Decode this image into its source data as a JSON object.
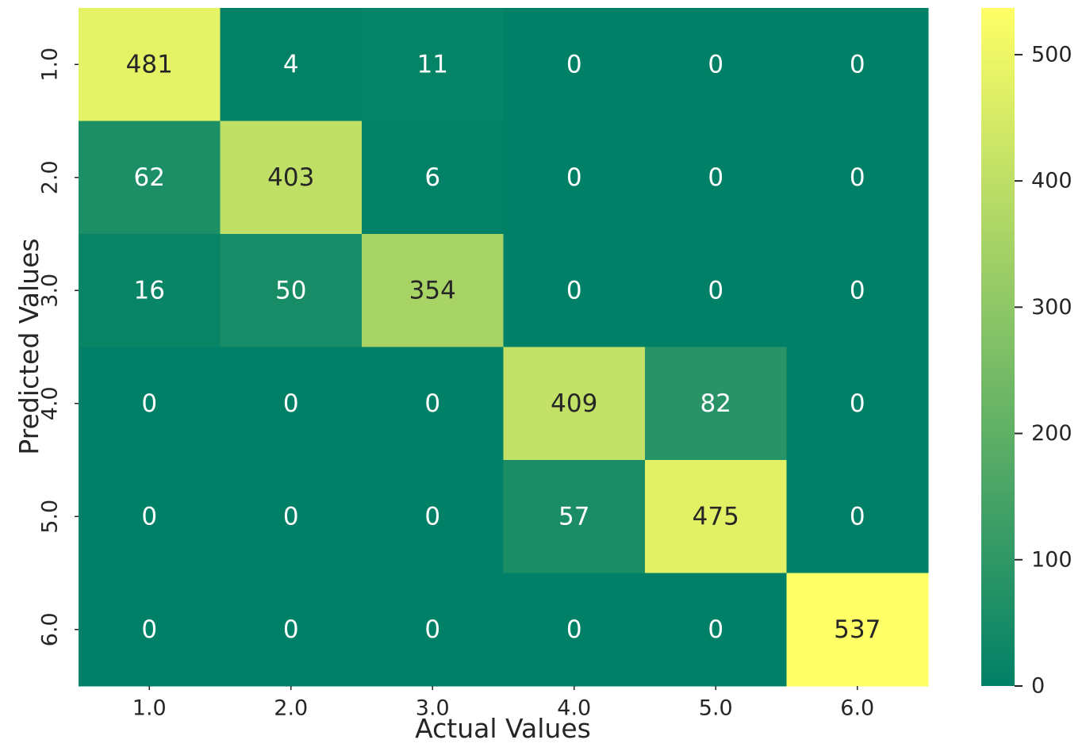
{
  "chart_data": {
    "type": "heatmap",
    "title": "",
    "xlabel": "Actual Values",
    "ylabel": "Predicted Values",
    "x_categories": [
      "1.0",
      "2.0",
      "3.0",
      "4.0",
      "5.0",
      "6.0"
    ],
    "y_categories": [
      "1.0",
      "2.0",
      "3.0",
      "4.0",
      "5.0",
      "6.0"
    ],
    "values": [
      [
        481,
        4,
        11,
        0,
        0,
        0
      ],
      [
        62,
        403,
        6,
        0,
        0,
        0
      ],
      [
        16,
        50,
        354,
        0,
        0,
        0
      ],
      [
        0,
        0,
        0,
        409,
        82,
        0
      ],
      [
        0,
        0,
        0,
        57,
        475,
        0
      ],
      [
        0,
        0,
        0,
        0,
        0,
        537
      ]
    ],
    "colormap": "summer",
    "color_low": "#008066",
    "color_high": "#ffff66",
    "text_color_dark": "#262626",
    "text_color_light": "#ffffff",
    "vmin": 0,
    "vmax": 537,
    "colorbar_ticks": [
      0,
      100,
      200,
      300,
      400,
      500
    ],
    "colorbar_tick_labels": [
      "0",
      "100",
      "200",
      "300",
      "400",
      "500"
    ],
    "grid": false,
    "legend": "colorbar-right"
  }
}
